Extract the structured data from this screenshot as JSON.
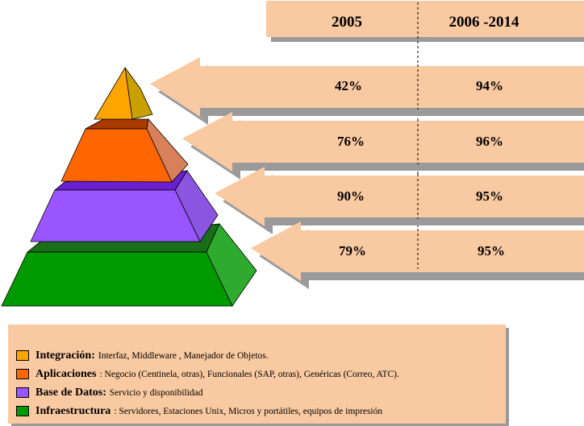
{
  "header": {
    "col1": "2005",
    "col2": "2006 -2014"
  },
  "rows": [
    {
      "v2005": "42%",
      "v2006_2014": "94%"
    },
    {
      "v2005": "76%",
      "v2006_2014": "96%"
    },
    {
      "v2005": "90%",
      "v2006_2014": "95%"
    },
    {
      "v2005": "79%",
      "v2006_2014": "95%"
    }
  ],
  "legend": [
    {
      "name": "Integración:",
      "desc": "Interfaz, Middleware , Manejador de Objetos.",
      "color": "#ffa500"
    },
    {
      "name": "Aplicaciones",
      "desc": ":  Negocio (Centinela, otras), Funcionales (SAP, otras), Genéricas (Correo, ATC).",
      "color": "#ff6600"
    },
    {
      "name": "Base de Datos:",
      "desc": "Servicio y disponibilidad",
      "color": "#9955ff"
    },
    {
      "name": "Infraestructura",
      "desc": ":  Servidores, Estaciones Unix, Micros y portátiles, equipos de impresión",
      "color": "#009900"
    }
  ],
  "colors": {
    "arrow_fill": "#f9c9a1",
    "shadow": "#9a9a9a"
  }
}
